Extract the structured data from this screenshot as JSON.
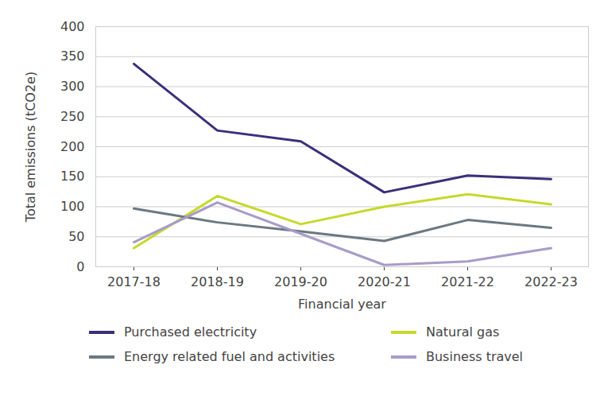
{
  "chart_data": {
    "type": "line",
    "x_label": "Financial year",
    "y_label": "Total emissions (tCO2e)",
    "categories": [
      "2017-18",
      "2018-19",
      "2019-20",
      "2020-21",
      "2021-22",
      "2022-23"
    ],
    "series": [
      {
        "name": "Purchased electricity",
        "color": "#3d2f7a",
        "values": [
          338,
          227,
          209,
          124,
          152,
          146
        ]
      },
      {
        "name": "Natural gas",
        "color": "#c6d92b",
        "values": [
          31,
          118,
          71,
          100,
          121,
          104
        ]
      },
      {
        "name": "Energy related fuel and activities",
        "color": "#6b7882",
        "values": [
          97,
          74,
          59,
          43,
          78,
          65
        ]
      },
      {
        "name": "Business travel",
        "color": "#a99bc8",
        "values": [
          41,
          107,
          55,
          3,
          9,
          31
        ]
      }
    ],
    "ylim": [
      0,
      400
    ],
    "yticks": [
      0,
      50,
      100,
      150,
      200,
      250,
      300,
      350,
      400
    ],
    "grid": true,
    "legend": "bottom"
  }
}
